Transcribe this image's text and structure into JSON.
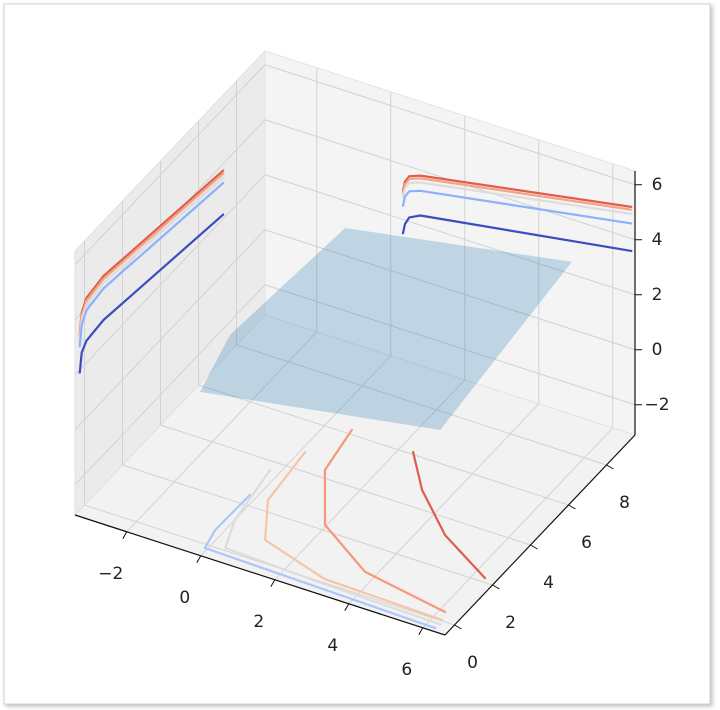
{
  "chart_data": {
    "type": "surface3d",
    "xlim": [
      -3.4,
      6.6
    ],
    "ylim": [
      -0.5,
      9.5
    ],
    "zlim": [
      -3.1,
      6.5
    ],
    "xticks": [
      {
        "value": -2,
        "label": "−2"
      },
      0,
      2,
      4,
      6
    ],
    "yticks": [
      0,
      2,
      4,
      6,
      8
    ],
    "zticks": [
      {
        "value": -2,
        "label": "−2"
      },
      0,
      2,
      4,
      6
    ],
    "grid": true,
    "surface": {
      "color": "#1f77b4",
      "alpha": 0.25,
      "x": [
        -1.29,
        -1.25,
        -0.43,
        5.19,
        4.15
      ],
      "y": [
        1.97,
        3.47,
        7.93,
        8.92,
        4.02
      ],
      "z": [
        0.5,
        1.5,
        2.5,
        3,
        0
      ]
    },
    "contours_floor": [
      {
        "color": "#dd5e4b",
        "x": [
          2.35,
          3.28,
          4.64,
          6.31
        ],
        "y": [
          6.1,
          4.76,
          3.32,
          2.17
        ]
      },
      {
        "color": "#f4987a",
        "x": [
          0.65,
          0.88,
          1.96,
          3.71,
          6.15
        ],
        "y": [
          6.18,
          4.32,
          2.22,
          0.92,
          0.38
        ]
      },
      {
        "color": "#f7c4a8",
        "x": [
          0.12,
          0.29,
          1.02,
          3.0,
          6.24
        ],
        "y": [
          4.76,
          2.47,
          0.9,
          0.15,
          0.04
        ]
      },
      {
        "color": "#dddcdc",
        "x": [
          -0.25,
          0.0,
          0.35,
          3.13,
          6.3
        ],
        "y": [
          3.64,
          1.29,
          0.1,
          -0.05,
          -0.15
        ]
      },
      {
        "color": "#aac7fd",
        "x": [
          -0.18,
          -0.21,
          -0.07,
          3.0,
          6.26
        ],
        "y": [
          2.43,
          0.66,
          -0.15,
          -0.25,
          -0.36
        ]
      }
    ],
    "contours_x_wall": [
      {
        "color": "#dd5e4b",
        "y": [
          -0.25,
          -0.15,
          0.1,
          1.0,
          7.3
        ],
        "z": [
          3.3,
          4.0,
          4.35,
          4.5,
          3.75
        ]
      },
      {
        "color": "#f6a385",
        "y": [
          -0.25,
          -0.15,
          0.1,
          1.0,
          7.3
        ],
        "z": [
          3.2,
          3.9,
          4.25,
          4.4,
          3.65
        ]
      },
      {
        "color": "#dcdddd",
        "y": [
          -0.25,
          -0.15,
          0.1,
          1.0,
          7.3
        ],
        "z": [
          3.05,
          3.75,
          4.1,
          4.25,
          3.5
        ]
      },
      {
        "color": "#8db0fe",
        "y": [
          -0.25,
          -0.15,
          0.1,
          1.0,
          7.3
        ],
        "z": [
          2.85,
          3.55,
          3.9,
          4.05,
          3.3
        ]
      },
      {
        "color": "#3b4cc0",
        "y": [
          -0.25,
          -0.15,
          0.1,
          1.0,
          7.3
        ],
        "z": [
          1.9,
          2.55,
          2.8,
          2.9,
          2.15
        ]
      }
    ],
    "contours_y_wall": [
      {
        "color": "#dd5e4b",
        "x": [
          0.33,
          0.38,
          0.5,
          0.8,
          6.5
        ],
        "z": [
          3.05,
          3.4,
          3.65,
          3.8,
          5.15
        ]
      },
      {
        "color": "#f6a385",
        "x": [
          0.33,
          0.38,
          0.5,
          0.8,
          6.5
        ],
        "z": [
          2.95,
          3.3,
          3.55,
          3.7,
          5.05
        ]
      },
      {
        "color": "#dcdddd",
        "x": [
          0.33,
          0.38,
          0.5,
          0.8,
          6.5
        ],
        "z": [
          2.8,
          3.15,
          3.4,
          3.55,
          4.9
        ]
      },
      {
        "color": "#8db0fe",
        "x": [
          0.33,
          0.38,
          0.5,
          0.8,
          6.5
        ],
        "z": [
          2.5,
          2.85,
          3.1,
          3.25,
          4.55
        ]
      },
      {
        "color": "#3b4cc0",
        "x": [
          0.33,
          0.38,
          0.5,
          0.8,
          6.5
        ],
        "z": [
          1.5,
          1.85,
          2.15,
          2.35,
          3.55
        ]
      }
    ]
  }
}
